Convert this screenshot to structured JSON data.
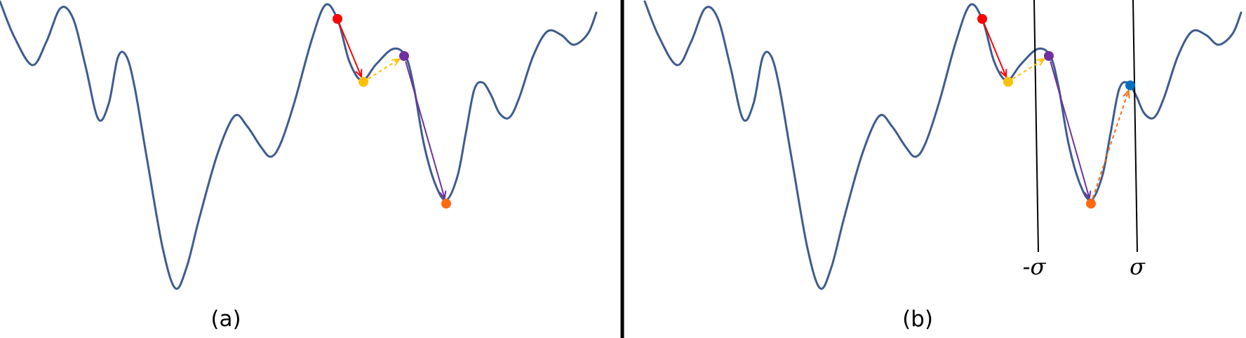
{
  "figure": {
    "panels": [
      {
        "id": "a",
        "caption": "(a)"
      },
      {
        "id": "b",
        "caption": "(b)"
      }
    ],
    "sigma_labels": {
      "minus": "-σ",
      "plus": "σ"
    }
  },
  "colors": {
    "curve": "#3d5c8f",
    "divider": "#000000",
    "point_start": "#ff0000",
    "point_local_min": "#ffc000",
    "point_peak": "#7030a0",
    "point_deep_min": "#ff6a13",
    "point_escape": "#0070c0",
    "arrow_descent": "#ff0000",
    "arrow_climb": "#ffc000",
    "arrow_jump": "#7030a0",
    "arrow_escape": "#ff6a13",
    "sigma_line": "#000000",
    "text": "#000000"
  },
  "markers": [
    {
      "name": "start-point",
      "color_key": "point_start"
    },
    {
      "name": "local-minimum-point",
      "color_key": "point_local_min"
    },
    {
      "name": "barrier-peak-point",
      "color_key": "point_peak"
    },
    {
      "name": "deep-minimum-point",
      "color_key": "point_deep_min"
    }
  ],
  "escape_marker": {
    "name": "escape-point",
    "color_key": "point_escape"
  },
  "trajectory": [
    {
      "name": "descent-arrow",
      "color_key": "arrow_descent",
      "dashed": false
    },
    {
      "name": "climb-arrow",
      "color_key": "arrow_climb",
      "dashed": true
    },
    {
      "name": "jump-arrow",
      "color_key": "arrow_jump",
      "dashed": false
    }
  ],
  "escape_arrow": {
    "name": "escape-arrow",
    "color_key": "arrow_escape",
    "dashed": true
  }
}
